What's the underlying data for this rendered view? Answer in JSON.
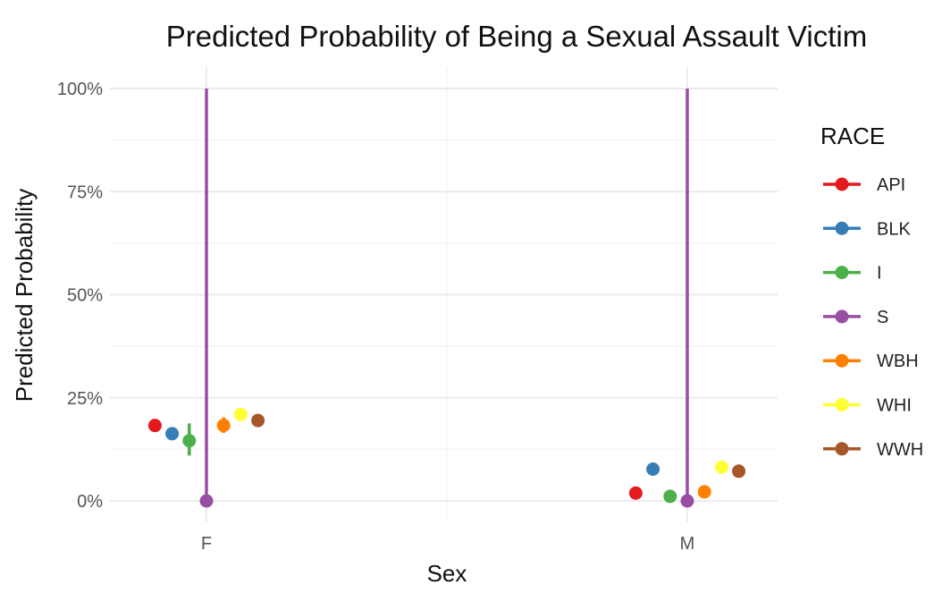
{
  "chart_data": {
    "type": "scatter",
    "title": "Predicted Probability of Being a Sexual Assault Victim",
    "xlabel": "Sex",
    "ylabel": "Predicted Probability",
    "categories": [
      "F",
      "M"
    ],
    "ylim": [
      0,
      1
    ],
    "yticks": [
      0,
      0.25,
      0.5,
      0.75,
      1
    ],
    "ytick_labels": [
      "0%",
      "25%",
      "50%",
      "75%",
      "100%"
    ],
    "grid": true,
    "error_bars": true,
    "legend": {
      "title": "RACE",
      "position": "right"
    },
    "series": [
      {
        "name": "API",
        "color": "#e41a1c",
        "points": [
          {
            "x": "F",
            "y": 0.183,
            "lo": 0.175,
            "hi": 0.192
          },
          {
            "x": "M",
            "y": 0.019,
            "lo": 0.015,
            "hi": 0.023
          }
        ]
      },
      {
        "name": "BLK",
        "color": "#377eb8",
        "points": [
          {
            "x": "F",
            "y": 0.163,
            "lo": 0.155,
            "hi": 0.171
          },
          {
            "x": "M",
            "y": 0.077,
            "lo": 0.07,
            "hi": 0.084
          }
        ]
      },
      {
        "name": "I",
        "color": "#4daf4a",
        "points": [
          {
            "x": "F",
            "y": 0.146,
            "lo": 0.11,
            "hi": 0.188
          },
          {
            "x": "M",
            "y": 0.011,
            "lo": 0.005,
            "hi": 0.017
          }
        ]
      },
      {
        "name": "S",
        "color": "#984ea3",
        "points": [
          {
            "x": "F",
            "y": 0.0,
            "lo": 0.0,
            "hi": 1.0
          },
          {
            "x": "M",
            "y": 0.0,
            "lo": 0.0,
            "hi": 1.0
          }
        ]
      },
      {
        "name": "WBH",
        "color": "#ff7f00",
        "points": [
          {
            "x": "F",
            "y": 0.183,
            "lo": 0.165,
            "hi": 0.203
          },
          {
            "x": "M",
            "y": 0.022,
            "lo": 0.017,
            "hi": 0.027
          }
        ]
      },
      {
        "name": "WHI",
        "color": "#ffff33",
        "points": [
          {
            "x": "F",
            "y": 0.21,
            "lo": 0.205,
            "hi": 0.215
          },
          {
            "x": "M",
            "y": 0.082,
            "lo": 0.078,
            "hi": 0.086
          }
        ]
      },
      {
        "name": "WWH",
        "color": "#a65628",
        "points": [
          {
            "x": "F",
            "y": 0.195,
            "lo": 0.19,
            "hi": 0.2
          },
          {
            "x": "M",
            "y": 0.072,
            "lo": 0.068,
            "hi": 0.076
          }
        ]
      }
    ]
  }
}
